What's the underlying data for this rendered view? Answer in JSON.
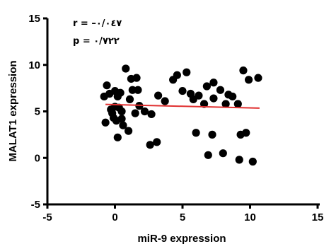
{
  "chart_data": {
    "type": "scatter",
    "title": "",
    "xlabel": "miR-9 expression",
    "ylabel": "MALAT1  expression",
    "xlim": [
      -5,
      15
    ],
    "ylim": [
      -5,
      15
    ],
    "x_ticks": [
      "-5",
      "0",
      "5",
      "10",
      "15"
    ],
    "y_ticks": [
      "-5",
      "0",
      "5",
      "10",
      "15"
    ],
    "grid": false,
    "stats": {
      "r": "r = –۰/۰٤٧",
      "p": "p = ۰/٧٢٢"
    },
    "trendline": {
      "x": [
        -0.7,
        10.7
      ],
      "y": [
        5.75,
        5.35
      ],
      "color": "#e03030"
    },
    "colors": {
      "points": "#000000",
      "axes": "#000000"
    },
    "points": [
      {
        "x": -0.8,
        "y": 6.6
      },
      {
        "x": -0.6,
        "y": 7.8
      },
      {
        "x": -0.4,
        "y": 6.9
      },
      {
        "x": -0.7,
        "y": 3.8
      },
      {
        "x": -0.3,
        "y": 5.2
      },
      {
        "x": -0.2,
        "y": 4.8
      },
      {
        "x": -0.1,
        "y": 4.3
      },
      {
        "x": 0.0,
        "y": 5.5
      },
      {
        "x": 0.0,
        "y": 7.2
      },
      {
        "x": 0.1,
        "y": 4.0
      },
      {
        "x": 0.2,
        "y": 6.6
      },
      {
        "x": 0.3,
        "y": 5.4
      },
      {
        "x": 0.4,
        "y": 7.0
      },
      {
        "x": 0.5,
        "y": 5.0
      },
      {
        "x": 0.5,
        "y": 4.2
      },
      {
        "x": 0.2,
        "y": 2.2
      },
      {
        "x": 0.6,
        "y": 3.5
      },
      {
        "x": 0.8,
        "y": 9.6
      },
      {
        "x": 1.0,
        "y": 2.9
      },
      {
        "x": 1.1,
        "y": 6.3
      },
      {
        "x": 1.2,
        "y": 8.5
      },
      {
        "x": 1.3,
        "y": 7.3
      },
      {
        "x": 1.6,
        "y": 8.6
      },
      {
        "x": 1.7,
        "y": 7.3
      },
      {
        "x": 1.5,
        "y": 4.8
      },
      {
        "x": 1.8,
        "y": 5.6
      },
      {
        "x": 2.2,
        "y": 5.0
      },
      {
        "x": 2.7,
        "y": 4.7
      },
      {
        "x": 2.6,
        "y": 1.4
      },
      {
        "x": 3.1,
        "y": 1.7
      },
      {
        "x": 3.2,
        "y": 6.7
      },
      {
        "x": 3.7,
        "y": 6.1
      },
      {
        "x": 4.3,
        "y": 8.4
      },
      {
        "x": 4.6,
        "y": 8.9
      },
      {
        "x": 5.0,
        "y": 7.2
      },
      {
        "x": 5.3,
        "y": 9.2
      },
      {
        "x": 5.6,
        "y": 6.9
      },
      {
        "x": 5.8,
        "y": 6.3
      },
      {
        "x": 6.0,
        "y": 2.7
      },
      {
        "x": 6.2,
        "y": 6.7
      },
      {
        "x": 6.6,
        "y": 5.8
      },
      {
        "x": 6.8,
        "y": 7.7
      },
      {
        "x": 6.9,
        "y": 0.3
      },
      {
        "x": 7.2,
        "y": 2.5
      },
      {
        "x": 7.3,
        "y": 6.4
      },
      {
        "x": 7.3,
        "y": 8.1
      },
      {
        "x": 7.8,
        "y": 7.3
      },
      {
        "x": 8.0,
        "y": 0.5
      },
      {
        "x": 8.2,
        "y": 5.8
      },
      {
        "x": 8.4,
        "y": 6.8
      },
      {
        "x": 8.7,
        "y": 6.6
      },
      {
        "x": 9.1,
        "y": 5.8
      },
      {
        "x": 9.3,
        "y": 2.5
      },
      {
        "x": 9.5,
        "y": 9.4
      },
      {
        "x": 9.7,
        "y": 2.7
      },
      {
        "x": 9.2,
        "y": -0.2
      },
      {
        "x": 9.9,
        "y": 8.4
      },
      {
        "x": 10.2,
        "y": -0.4
      },
      {
        "x": 10.6,
        "y": 8.6
      }
    ]
  }
}
